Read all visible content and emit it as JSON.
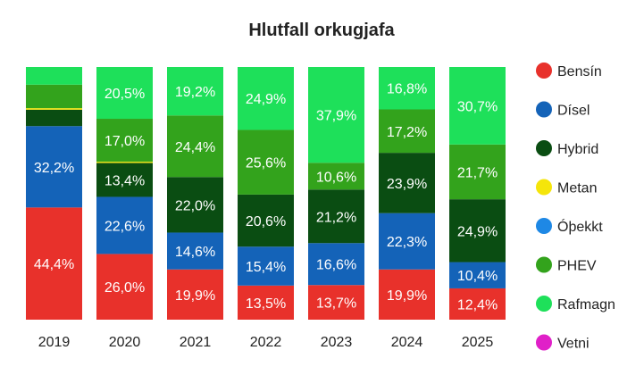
{
  "chart_data": {
    "type": "bar",
    "stacked": true,
    "percent_stacked": true,
    "title": "Hlutfall orkugjafa",
    "xlabel": "",
    "ylabel": "",
    "ylim": [
      0,
      100
    ],
    "grid": false,
    "legend_position": "right",
    "categories": [
      "2019",
      "2020",
      "2021",
      "2022",
      "2023",
      "2024",
      "2025"
    ],
    "series": [
      {
        "name": "Bensín",
        "color": "#e8312b",
        "values": [
          44.4,
          26.0,
          19.9,
          13.5,
          13.7,
          19.9,
          12.4
        ],
        "labels": [
          "44,4%",
          "26,0%",
          "19,9%",
          "13,5%",
          "13,7%",
          "19,9%",
          "12,4%"
        ]
      },
      {
        "name": "Dísel",
        "color": "#1463b8",
        "values": [
          32.2,
          22.6,
          14.6,
          15.4,
          16.6,
          22.3,
          10.4
        ],
        "labels": [
          "32,2%",
          "22,6%",
          "14,6%",
          "15,4%",
          "16,6%",
          "22,3%",
          "10,4%"
        ]
      },
      {
        "name": "Hybrid",
        "color": "#0a4d12",
        "values": [
          6.5,
          13.4,
          22.0,
          20.6,
          21.2,
          23.9,
          24.9
        ],
        "labels": [
          "",
          "13,4%",
          "22,0%",
          "20,6%",
          "21,2%",
          "23,9%",
          "24,9%"
        ]
      },
      {
        "name": "Metan",
        "color": "#f5e50a",
        "values": [
          0.6,
          0.5,
          0.0,
          0.0,
          0.0,
          0.0,
          0.0
        ],
        "labels": [
          "",
          "",
          "",
          "",
          "",
          "",
          ""
        ]
      },
      {
        "name": "Óþekkt",
        "color": "#1e88e5",
        "values": [
          0.0,
          0.0,
          0.0,
          0.0,
          0.0,
          0.0,
          0.0
        ],
        "labels": [
          "",
          "",
          "",
          "",
          "",
          "",
          ""
        ]
      },
      {
        "name": "PHEV",
        "color": "#33a31c",
        "values": [
          9.3,
          17.0,
          24.4,
          25.6,
          10.6,
          17.2,
          21.7
        ],
        "labels": [
          "",
          "17,0%",
          "24,4%",
          "25,6%",
          "10,6%",
          "17,2%",
          "21,7%"
        ]
      },
      {
        "name": "Rafmagn",
        "color": "#1ee05a",
        "values": [
          7.0,
          20.5,
          19.2,
          24.9,
          37.9,
          16.8,
          30.7
        ],
        "labels": [
          "",
          "20,5%",
          "19,2%",
          "24,9%",
          "37,9%",
          "16,8%",
          "30,7%"
        ]
      },
      {
        "name": "Vetni",
        "color": "#e020c8",
        "values": [
          0.0,
          0.0,
          0.0,
          0.0,
          0.0,
          0.0,
          0.0
        ],
        "labels": [
          "",
          "",
          "",
          "",
          "",
          "",
          ""
        ]
      }
    ]
  }
}
